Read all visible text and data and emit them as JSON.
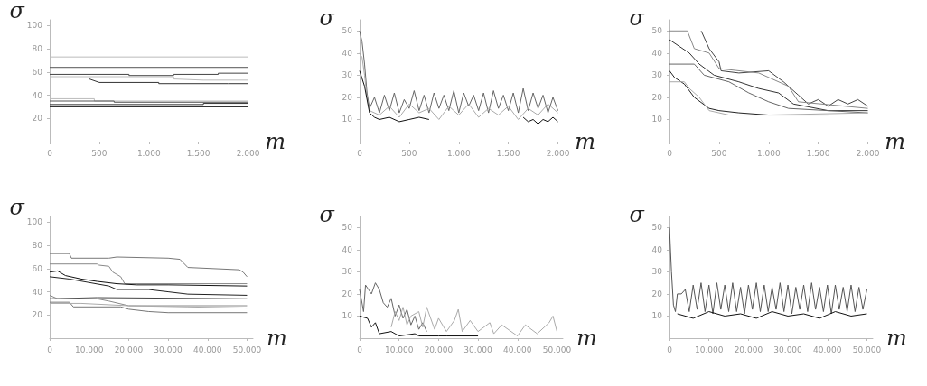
{
  "chart_data": [
    {
      "type": "line",
      "xlabel": "m",
      "ylabel": "σ",
      "xlim": [
        0,
        2050
      ],
      "ylim": [
        0,
        105
      ],
      "xticks": [
        {
          "value": 0,
          "label": "0"
        },
        {
          "value": 500,
          "label": "500"
        },
        {
          "value": 1000,
          "label": "1.000"
        },
        {
          "value": 1500,
          "label": "1.500"
        },
        {
          "value": 2000,
          "label": "2.000"
        }
      ],
      "yticks": [
        20,
        40,
        60,
        80,
        100
      ],
      "series": [
        {
          "color": "#bbbbbb",
          "x": [
            0,
            2000
          ],
          "values": [
            73,
            73
          ]
        },
        {
          "color": "#555555",
          "x": [
            0,
            2000
          ],
          "values": [
            64,
            64
          ]
        },
        {
          "color": "#444444",
          "x": [
            0,
            800,
            800,
            1250,
            1250,
            1700,
            1700,
            2000
          ],
          "values": [
            58,
            58,
            57,
            57,
            58,
            58,
            59,
            59
          ]
        },
        {
          "color": "#bbbbbb",
          "x": [
            0,
            1250,
            1250,
            1550,
            2000
          ],
          "values": [
            56,
            56,
            54,
            53,
            53
          ]
        },
        {
          "color": "#333333",
          "x": [
            400,
            500,
            1100,
            1100,
            1800,
            2000
          ],
          "values": [
            54,
            51,
            51,
            50,
            50,
            50
          ]
        },
        {
          "color": "#bbbbbb",
          "x": [
            0,
            450,
            450,
            650,
            2000
          ],
          "values": [
            37,
            37,
            35,
            35,
            35
          ]
        },
        {
          "color": "#555555",
          "x": [
            0,
            650,
            650,
            2000
          ],
          "values": [
            35,
            35,
            34,
            34
          ]
        },
        {
          "color": "#333333",
          "x": [
            0,
            1550,
            1550,
            2000
          ],
          "values": [
            32,
            32,
            33,
            33
          ]
        },
        {
          "color": "#222222",
          "x": [
            0,
            2000
          ],
          "values": [
            30,
            30
          ]
        }
      ]
    },
    {
      "type": "line",
      "xlabel": "m",
      "ylabel": "σ",
      "xlim": [
        0,
        2050
      ],
      "ylim": [
        0,
        55
      ],
      "xticks": [
        {
          "value": 0,
          "label": "0"
        },
        {
          "value": 500,
          "label": "500"
        },
        {
          "value": 1000,
          "label": "1.000"
        },
        {
          "value": 1500,
          "label": "1.500"
        },
        {
          "value": 2000,
          "label": "2.000"
        }
      ],
      "yticks": [
        10,
        20,
        30,
        40,
        50
      ],
      "series": [
        {
          "color": "#666666",
          "x": [
            0,
            25,
            50,
            75,
            100,
            150,
            200,
            250,
            300,
            350,
            400,
            450,
            500,
            550,
            600,
            650,
            700,
            750,
            800,
            850,
            900,
            950,
            1000,
            1050,
            1100,
            1150,
            1200,
            1250,
            1300,
            1350,
            1400,
            1450,
            1500,
            1550,
            1600,
            1650,
            1700,
            1750,
            1800,
            1850,
            1900,
            1950,
            2000
          ],
          "values": [
            50,
            45,
            35,
            22,
            15,
            20,
            13,
            21,
            14,
            22,
            13,
            19,
            15,
            23,
            14,
            21,
            13,
            22,
            15,
            21,
            14,
            23,
            13,
            22,
            16,
            21,
            14,
            22,
            13,
            23,
            15,
            21,
            14,
            22,
            13,
            24,
            14,
            22,
            15,
            21,
            13,
            20,
            14
          ]
        },
        {
          "color": "#aaaaaa",
          "x": [
            0,
            25,
            50,
            75,
            100,
            200,
            300,
            400,
            500,
            600,
            700,
            800,
            900,
            1000,
            1100,
            1200,
            1300,
            1400,
            1500,
            1600,
            1700,
            1800,
            1900,
            2000
          ],
          "values": [
            40,
            38,
            30,
            20,
            14,
            12,
            16,
            11,
            17,
            13,
            15,
            10,
            16,
            12,
            17,
            11,
            15,
            12,
            16,
            10,
            15,
            12,
            17,
            13
          ]
        },
        {
          "color": "#111111",
          "x": [
            0,
            50,
            100,
            150,
            200,
            300,
            400,
            500,
            600,
            700
          ],
          "values": [
            32,
            25,
            13,
            11,
            10,
            11,
            9,
            10,
            11,
            10
          ]
        },
        {
          "color": "#111111",
          "x": [
            1650,
            1700,
            1750,
            1800,
            1850,
            1900,
            1950,
            2000
          ],
          "values": [
            11,
            9,
            10,
            8,
            10,
            9,
            11,
            9
          ]
        }
      ]
    },
    {
      "type": "line",
      "xlabel": "m",
      "ylabel": "σ",
      "xlim": [
        0,
        2050
      ],
      "ylim": [
        0,
        55
      ],
      "xticks": [
        {
          "value": 0,
          "label": "0"
        },
        {
          "value": 500,
          "label": "500"
        },
        {
          "value": 1000,
          "label": "1.000"
        },
        {
          "value": 1500,
          "label": "1.500"
        },
        {
          "value": 2000,
          "label": "2.000"
        }
      ],
      "yticks": [
        10,
        20,
        30,
        40,
        50
      ],
      "series": [
        {
          "color": "#444444",
          "x": [
            320,
            400,
            500,
            520,
            700,
            1000,
            1150,
            1300,
            1400,
            1500,
            1600,
            1700,
            1800,
            1900,
            2000
          ],
          "values": [
            50,
            42,
            36,
            32,
            31,
            32,
            27,
            21,
            17,
            19,
            16,
            19,
            17,
            19,
            16
          ]
        },
        {
          "color": "#888888",
          "x": [
            0,
            180,
            250,
            400,
            500,
            900,
            1200,
            1300,
            2000
          ],
          "values": [
            50,
            50,
            42,
            40,
            33,
            31,
            25,
            18,
            15
          ]
        },
        {
          "color": "#333333",
          "x": [
            0,
            200,
            300,
            450,
            700,
            900,
            1100,
            1250,
            1600,
            2000
          ],
          "values": [
            46,
            40,
            35,
            30,
            27,
            24,
            22,
            17,
            14,
            14
          ]
        },
        {
          "color": "#666666",
          "x": [
            0,
            250,
            350,
            600,
            800,
            900,
            1000,
            1200,
            2000
          ],
          "values": [
            35,
            35,
            30,
            27,
            22,
            20,
            18,
            15,
            13
          ]
        },
        {
          "color": "#222222",
          "x": [
            0,
            50,
            150,
            250,
            400,
            500,
            700,
            1000,
            1600
          ],
          "values": [
            32,
            29,
            26,
            20,
            15,
            14,
            13,
            12,
            12
          ]
        },
        {
          "color": "#aaaaaa",
          "x": [
            0,
            150,
            200,
            300,
            400,
            600,
            1000,
            2000
          ],
          "values": [
            27,
            27,
            24,
            20,
            14,
            12,
            12,
            13
          ]
        }
      ]
    },
    {
      "type": "line",
      "xlabel": "m",
      "ylabel": "σ",
      "xlim": [
        0,
        51500
      ],
      "ylim": [
        0,
        105
      ],
      "xticks": [
        {
          "value": 0,
          "label": "0"
        },
        {
          "value": 10000,
          "label": "10.000"
        },
        {
          "value": 20000,
          "label": "20.000"
        },
        {
          "value": 30000,
          "label": "30.000"
        },
        {
          "value": 40000,
          "label": "40.000"
        },
        {
          "value": 50000,
          "label": "50.000"
        }
      ],
      "yticks": [
        20,
        40,
        60,
        80,
        100
      ],
      "series": [
        {
          "color": "#777777",
          "x": [
            0,
            5000,
            5500,
            15000,
            17000,
            30000,
            33000,
            35000,
            48000,
            49000,
            50000
          ],
          "values": [
            73,
            73,
            69,
            69,
            70,
            69,
            68,
            61,
            59,
            57,
            53
          ]
        },
        {
          "color": "#888888",
          "x": [
            0,
            12000,
            12500,
            15000,
            16000,
            18000,
            19000,
            50000
          ],
          "values": [
            64,
            64,
            63,
            62,
            57,
            53,
            47,
            47
          ]
        },
        {
          "color": "#111111",
          "x": [
            0,
            2000,
            4000,
            8000,
            12000,
            17000,
            22000,
            30000,
            50000
          ],
          "values": [
            57,
            58,
            54,
            51,
            49,
            47,
            46,
            46,
            45
          ]
        },
        {
          "color": "#222222",
          "x": [
            0,
            5000,
            10000,
            15000,
            17000,
            25000,
            30000,
            35000,
            50000
          ],
          "values": [
            53,
            51,
            48,
            45,
            42,
            42,
            40,
            38,
            37
          ]
        },
        {
          "color": "#444444",
          "x": [
            0,
            12000,
            50000
          ],
          "values": [
            34,
            35,
            34
          ]
        },
        {
          "color": "#888888",
          "x": [
            0,
            2000,
            12000,
            15000,
            20000,
            50000
          ],
          "values": [
            37,
            34,
            34,
            32,
            28,
            28
          ]
        },
        {
          "color": "#777777",
          "x": [
            0,
            5000,
            6000,
            18000,
            20000,
            25000,
            30000,
            50000
          ],
          "values": [
            31,
            31,
            27,
            27,
            25,
            23,
            22,
            22
          ]
        },
        {
          "color": "#aaaaaa",
          "x": [
            0,
            8000,
            20000,
            35000,
            50000
          ],
          "values": [
            30,
            30,
            28,
            27,
            26
          ]
        }
      ]
    },
    {
      "type": "line",
      "xlabel": "m",
      "ylabel": "σ",
      "xlim": [
        0,
        51500
      ],
      "ylim": [
        0,
        55
      ],
      "xticks": [
        {
          "value": 0,
          "label": "0"
        },
        {
          "value": 10000,
          "label": "10.000"
        },
        {
          "value": 20000,
          "label": "20.000"
        },
        {
          "value": 30000,
          "label": "30.000"
        },
        {
          "value": 40000,
          "label": "40.000"
        },
        {
          "value": 50000,
          "label": "50.000"
        }
      ],
      "yticks": [
        10,
        20,
        30,
        40,
        50
      ],
      "series": [
        {
          "color": "#666666",
          "x": [
            0,
            1000,
            1500,
            3000,
            4000,
            5000,
            6000,
            7000,
            8000,
            9000,
            10000,
            11000,
            12000,
            13000,
            14000,
            15000,
            16000,
            17000
          ],
          "values": [
            22,
            12,
            24,
            20,
            25,
            22,
            16,
            14,
            18,
            10,
            15,
            9,
            13,
            6,
            10,
            4,
            7,
            3
          ]
        },
        {
          "color": "#aaaaaa",
          "x": [
            8000,
            9000,
            10000,
            11000,
            12000,
            13000,
            15000,
            16000,
            17000,
            18000,
            19000,
            20000,
            22000,
            24000,
            25000,
            26000,
            28000,
            30000,
            33000,
            34000,
            36000,
            40000,
            42000,
            45000,
            48000,
            49000,
            50000
          ],
          "values": [
            5,
            12,
            8,
            14,
            6,
            10,
            12,
            5,
            14,
            9,
            4,
            9,
            3,
            8,
            13,
            3,
            8,
            3,
            7,
            2,
            6,
            1,
            6,
            2,
            7,
            10,
            3
          ]
        },
        {
          "color": "#111111",
          "x": [
            0,
            2000,
            3000,
            4000,
            5000,
            8000,
            10000,
            14000,
            15000,
            20000,
            22000,
            30000
          ],
          "values": [
            10,
            9,
            5,
            7,
            2,
            3,
            1,
            2,
            1,
            1,
            1,
            1
          ]
        }
      ]
    },
    {
      "type": "line",
      "xlabel": "m",
      "ylabel": "σ",
      "xlim": [
        0,
        51500
      ],
      "ylim": [
        0,
        55
      ],
      "xticks": [
        {
          "value": 0,
          "label": "0"
        },
        {
          "value": 10000,
          "label": "10.000"
        },
        {
          "value": 20000,
          "label": "20.000"
        },
        {
          "value": 30000,
          "label": "30.000"
        },
        {
          "value": 40000,
          "label": "40.000"
        },
        {
          "value": 50000,
          "label": "50.000"
        }
      ],
      "yticks": [
        10,
        20,
        30,
        40,
        50
      ],
      "series": [
        {
          "color": "#555555",
          "x": [
            0,
            500,
            1000,
            1500,
            2000,
            3000,
            4000,
            5000,
            6000,
            7000,
            8000,
            9000,
            10000,
            11000,
            12000,
            13000,
            14000,
            15000,
            16000,
            17000,
            18000,
            19000,
            20000,
            21000,
            22000,
            23000,
            24000,
            25000,
            26000,
            27000,
            28000,
            29000,
            30000,
            31000,
            32000,
            33000,
            34000,
            35000,
            36000,
            37000,
            38000,
            39000,
            40000,
            41000,
            42000,
            43000,
            44000,
            45000,
            46000,
            47000,
            48000,
            49000,
            50000
          ],
          "values": [
            50,
            30,
            15,
            12,
            20,
            20,
            22,
            12,
            24,
            13,
            25,
            12,
            24,
            11,
            25,
            13,
            24,
            12,
            25,
            12,
            23,
            11,
            24,
            13,
            25,
            12,
            24,
            12,
            23,
            13,
            25,
            12,
            24,
            11,
            23,
            13,
            24,
            12,
            25,
            13,
            23,
            12,
            24,
            11,
            24,
            13,
            23,
            12,
            24,
            12,
            23,
            13,
            22
          ]
        },
        {
          "color": "#111111",
          "x": [
            2000,
            6000,
            10000,
            14000,
            18000,
            22000,
            26000,
            30000,
            34000,
            38000,
            42000,
            46000,
            50000
          ],
          "values": [
            11,
            9,
            12,
            10,
            11,
            9,
            12,
            10,
            11,
            9,
            12,
            10,
            11
          ]
        }
      ]
    }
  ]
}
